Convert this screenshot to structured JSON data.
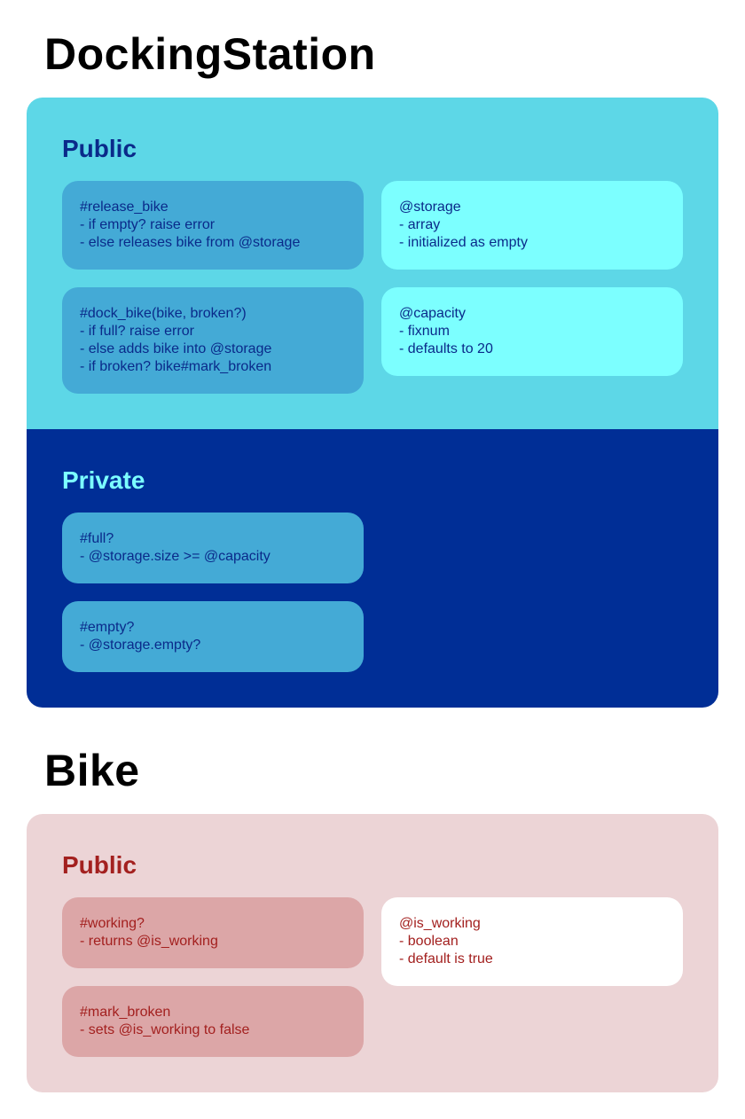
{
  "colors": {
    "ds_public_bg": "#5dd7e7",
    "ds_private_bg": "#002e96",
    "ds_method_card": "#44aad6",
    "ds_attr_card": "#7cffff",
    "ds_text": "#0a2a8a",
    "ds_public_title": "#0a2a8a",
    "ds_private_title": "#7cffff",
    "bike_bg": "#ecd4d6",
    "bike_method_card": "#dca6a7",
    "bike_attr_card": "#ffffff",
    "bike_text": "#a3201f"
  },
  "docking_station": {
    "title": "DockingStation",
    "public": {
      "label": "Public",
      "methods": [
        {
          "lines": [
            "#release_bike",
            "- if empty? raise error",
            "- else releases bike from @storage"
          ]
        },
        {
          "lines": [
            "#dock_bike(bike, broken?)",
            "- if full? raise error",
            "- else adds bike into @storage",
            "- if broken? bike#mark_broken"
          ]
        }
      ],
      "attributes": [
        {
          "lines": [
            "@storage",
            "- array",
            "- initialized as empty"
          ]
        },
        {
          "lines": [
            "@capacity",
            "- fixnum",
            "- defaults to 20"
          ]
        }
      ]
    },
    "private": {
      "label": "Private",
      "methods": [
        {
          "lines": [
            "#full?",
            "- @storage.size >= @capacity"
          ]
        },
        {
          "lines": [
            "#empty?",
            "- @storage.empty?"
          ]
        }
      ]
    }
  },
  "bike": {
    "title": "Bike",
    "public": {
      "label": "Public",
      "methods": [
        {
          "lines": [
            "#working?",
            "- returns @is_working"
          ]
        },
        {
          "lines": [
            "#mark_broken",
            "- sets @is_working to false"
          ]
        }
      ],
      "attributes": [
        {
          "lines": [
            "@is_working",
            "- boolean",
            "- default is true"
          ]
        }
      ]
    }
  }
}
